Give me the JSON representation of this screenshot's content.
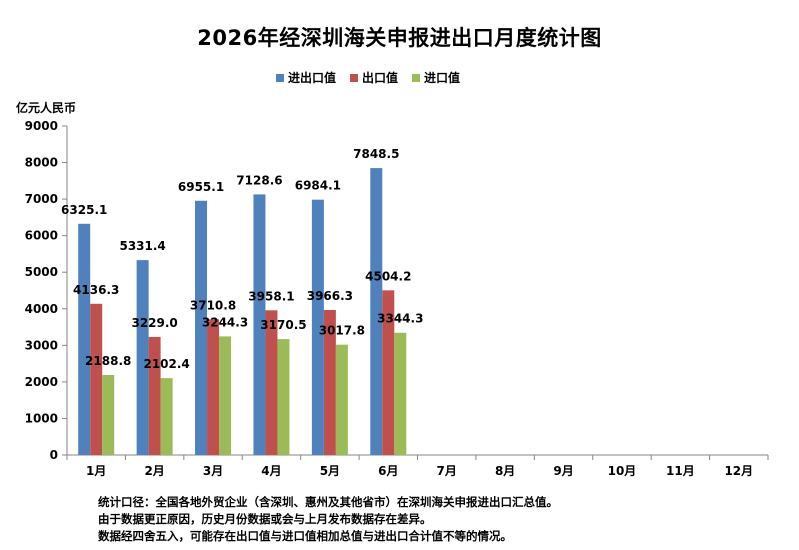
{
  "chart_data": {
    "type": "bar",
    "title": "2026年经深圳海关申报进出口月度统计图",
    "ylabel": "亿元人民币",
    "xlabel": "",
    "categories": [
      "1月",
      "2月",
      "3月",
      "4月",
      "5月",
      "6月",
      "7月",
      "8月",
      "9月",
      "10月",
      "11月",
      "12月"
    ],
    "series": [
      {
        "name": "进出口值",
        "color": "#4F81BD",
        "values": [
          6325.1,
          5331.4,
          6955.1,
          7128.6,
          6984.1,
          7848.5,
          null,
          null,
          null,
          null,
          null,
          null
        ]
      },
      {
        "name": "出口值",
        "color": "#C0504D",
        "values": [
          4136.3,
          3229.0,
          3710.8,
          3958.1,
          3966.3,
          4504.2,
          null,
          null,
          null,
          null,
          null,
          null
        ]
      },
      {
        "name": "进口值",
        "color": "#9BBB59",
        "values": [
          2188.8,
          2102.4,
          3244.3,
          3170.5,
          3017.8,
          3344.3,
          null,
          null,
          null,
          null,
          null,
          null
        ]
      }
    ],
    "data_labels": [
      [
        "6325.1",
        "5331.4",
        "6955.1",
        "7128.6",
        "6984.1",
        "7848.5"
      ],
      [
        "4136.3",
        "3229.0",
        "3710.8",
        "3958.1",
        "3966.3",
        "4504.2"
      ],
      [
        "2188.8",
        "2102.4",
        "3244.3",
        "3170.5",
        "3017.8",
        "3344.3"
      ]
    ],
    "ylim": [
      0,
      9000
    ],
    "yticks": [
      0,
      1000,
      2000,
      3000,
      4000,
      5000,
      6000,
      7000,
      8000,
      9000
    ],
    "grid": false,
    "legend_position": "top"
  },
  "notes": [
    "统计口径：全国各地外贸企业（含深圳、惠州及其他省市）在深圳海关申报进出口汇总值。",
    "由于数据更正原因，历史月份数据或会与上月发布数据存在差异。",
    "数据经四舍五入，可能存在出口值与进口值相加总值与进出口合计值不等的情况。"
  ]
}
